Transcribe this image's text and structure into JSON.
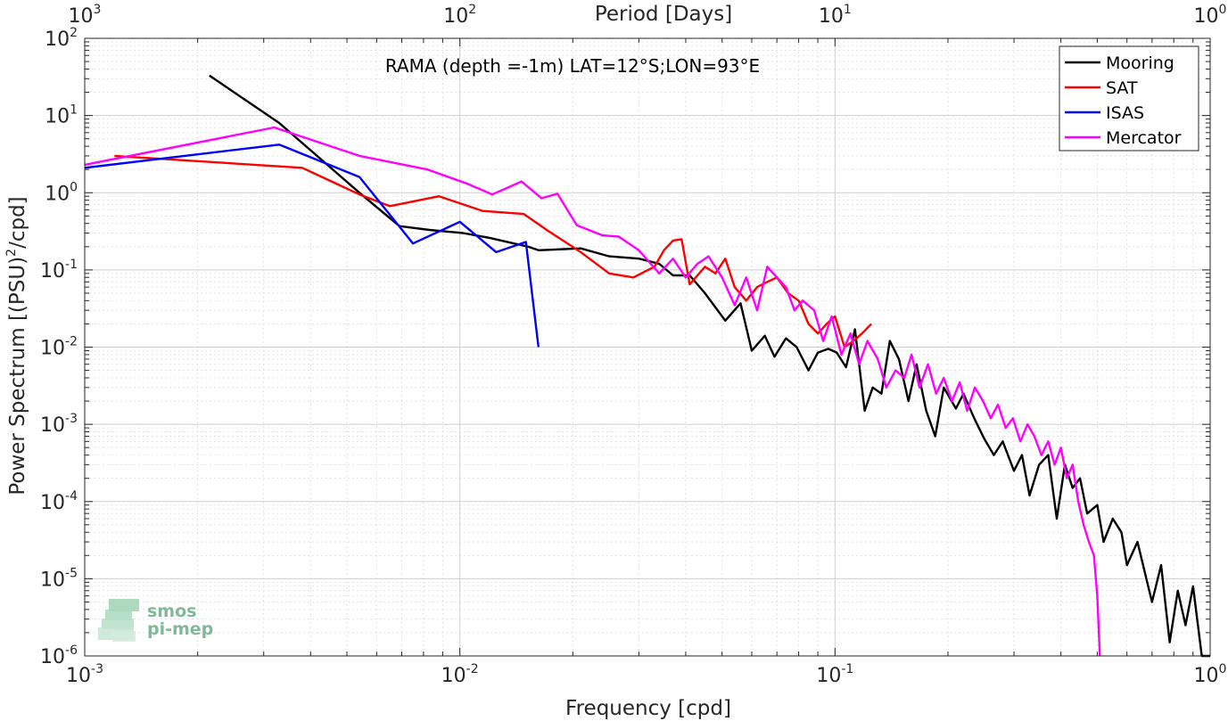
{
  "chart_data": {
    "type": "line",
    "title": "RAMA (depth =-1m) LAT=12°S;LON=93°E",
    "xlabel": "Frequency [cpd]",
    "ylabel": "Power Spectrum [(PSU)",
    "ylabel_sup": "2",
    "ylabel_suffix": "/cpd]",
    "top_xlabel": "Period [Days]",
    "xscale": "log",
    "yscale": "log",
    "xlim": [
      0.001,
      1
    ],
    "ylim": [
      1e-06,
      100
    ],
    "grid": true,
    "legend_position": "top-right",
    "x_ticks": [
      {
        "value": 0.001,
        "base": "10",
        "exp": "-3"
      },
      {
        "value": 0.01,
        "base": "10",
        "exp": "-2"
      },
      {
        "value": 0.1,
        "base": "10",
        "exp": "-1"
      },
      {
        "value": 1,
        "base": "10",
        "exp": "0"
      }
    ],
    "y_ticks": [
      {
        "value": 100,
        "base": "10",
        "exp": "2"
      },
      {
        "value": 10,
        "base": "10",
        "exp": "1"
      },
      {
        "value": 1,
        "base": "10",
        "exp": "0"
      },
      {
        "value": 0.1,
        "base": "10",
        "exp": "-1"
      },
      {
        "value": 0.01,
        "base": "10",
        "exp": "-2"
      },
      {
        "value": 0.001,
        "base": "10",
        "exp": "-3"
      },
      {
        "value": 0.0001,
        "base": "10",
        "exp": "-4"
      },
      {
        "value": 1e-05,
        "base": "10",
        "exp": "-5"
      },
      {
        "value": 1e-06,
        "base": "10",
        "exp": "-6"
      }
    ],
    "top_ticks": [
      {
        "period": 1000,
        "base": "10",
        "exp": "3"
      },
      {
        "period": 100,
        "base": "10",
        "exp": "2"
      },
      {
        "period": 10,
        "base": "10",
        "exp": "1"
      },
      {
        "period": 1,
        "base": "10",
        "exp": "0"
      }
    ],
    "series": [
      {
        "name": "Mooring",
        "color": "#000000",
        "points": [
          [
            0.00215,
            33
          ],
          [
            0.0033,
            8
          ],
          [
            0.0054,
            1
          ],
          [
            0.0069,
            0.37
          ],
          [
            0.0083,
            0.33
          ],
          [
            0.0102,
            0.3
          ],
          [
            0.012,
            0.26
          ],
          [
            0.0152,
            0.2
          ],
          [
            0.0162,
            0.18
          ],
          [
            0.021,
            0.19
          ],
          [
            0.025,
            0.15
          ],
          [
            0.03,
            0.14
          ],
          [
            0.034,
            0.12
          ],
          [
            0.037,
            0.085
          ],
          [
            0.041,
            0.085
          ],
          [
            0.045,
            0.05
          ],
          [
            0.051,
            0.022
          ],
          [
            0.056,
            0.037
          ],
          [
            0.06,
            0.009
          ],
          [
            0.065,
            0.014
          ],
          [
            0.069,
            0.0075
          ],
          [
            0.074,
            0.013
          ],
          [
            0.079,
            0.01
          ],
          [
            0.085,
            0.005
          ],
          [
            0.09,
            0.0085
          ],
          [
            0.096,
            0.0095
          ],
          [
            0.101,
            0.0085
          ],
          [
            0.107,
            0.0055
          ],
          [
            0.113,
            0.017
          ],
          [
            0.12,
            0.0015
          ],
          [
            0.126,
            0.003
          ],
          [
            0.133,
            0.0025
          ],
          [
            0.14,
            0.012
          ],
          [
            0.148,
            0.007
          ],
          [
            0.157,
            0.002
          ],
          [
            0.165,
            0.006
          ],
          [
            0.175,
            0.0015
          ],
          [
            0.185,
            0.0007
          ],
          [
            0.195,
            0.003
          ],
          [
            0.21,
            0.0016
          ],
          [
            0.22,
            0.0025
          ],
          [
            0.235,
            0.0012
          ],
          [
            0.25,
            0.00065
          ],
          [
            0.265,
            0.0004
          ],
          [
            0.28,
            0.0006
          ],
          [
            0.3,
            0.00025
          ],
          [
            0.315,
            0.0004
          ],
          [
            0.33,
            0.00012
          ],
          [
            0.35,
            0.0003
          ],
          [
            0.37,
            0.0004
          ],
          [
            0.39,
            6e-05
          ],
          [
            0.41,
            0.0003
          ],
          [
            0.43,
            0.00015
          ],
          [
            0.45,
            0.0002
          ],
          [
            0.47,
            7e-05
          ],
          [
            0.5,
            9e-05
          ],
          [
            0.52,
            3e-05
          ],
          [
            0.55,
            6e-05
          ],
          [
            0.58,
            4e-05
          ],
          [
            0.6,
            1.5e-05
          ],
          [
            0.64,
            3e-05
          ],
          [
            0.67,
            1.2e-05
          ],
          [
            0.7,
            5e-06
          ],
          [
            0.74,
            1.5e-05
          ],
          [
            0.78,
            1.5e-06
          ],
          [
            0.82,
            7e-06
          ],
          [
            0.86,
            2.5e-06
          ],
          [
            0.9,
            8e-06
          ],
          [
            0.95,
            1e-06
          ],
          [
            1.0,
            1e-06
          ]
        ]
      },
      {
        "name": "SAT",
        "color": "#ff0000",
        "points": [
          [
            0.0012,
            3
          ],
          [
            0.0038,
            2.1
          ],
          [
            0.0054,
            0.95
          ],
          [
            0.0065,
            0.67
          ],
          [
            0.0088,
            0.9
          ],
          [
            0.0115,
            0.58
          ],
          [
            0.0148,
            0.53
          ],
          [
            0.0172,
            0.32
          ],
          [
            0.021,
            0.17
          ],
          [
            0.025,
            0.09
          ],
          [
            0.029,
            0.08
          ],
          [
            0.033,
            0.11
          ],
          [
            0.035,
            0.18
          ],
          [
            0.037,
            0.24
          ],
          [
            0.039,
            0.25
          ],
          [
            0.041,
            0.065
          ],
          [
            0.045,
            0.11
          ],
          [
            0.048,
            0.09
          ],
          [
            0.051,
            0.14
          ],
          [
            0.054,
            0.06
          ],
          [
            0.058,
            0.04
          ],
          [
            0.062,
            0.06
          ],
          [
            0.066,
            0.07
          ],
          [
            0.07,
            0.08
          ],
          [
            0.075,
            0.05
          ],
          [
            0.08,
            0.04
          ],
          [
            0.085,
            0.02
          ],
          [
            0.09,
            0.015
          ],
          [
            0.095,
            0.02
          ],
          [
            0.1,
            0.025
          ],
          [
            0.106,
            0.01
          ],
          [
            0.112,
            0.012
          ],
          [
            0.118,
            0.015
          ],
          [
            0.125,
            0.02
          ]
        ]
      },
      {
        "name": "ISAS",
        "color": "#0000ff",
        "points": [
          [
            0.001,
            2.1
          ],
          [
            0.0033,
            4.2
          ],
          [
            0.0054,
            1.6
          ],
          [
            0.0075,
            0.22
          ],
          [
            0.01,
            0.42
          ],
          [
            0.0125,
            0.17
          ],
          [
            0.015,
            0.23
          ],
          [
            0.0162,
            0.01
          ]
        ]
      },
      {
        "name": "Mercator",
        "color": "#ff00ff",
        "points": [
          [
            0.001,
            2.3
          ],
          [
            0.0032,
            7
          ],
          [
            0.0054,
            3
          ],
          [
            0.0082,
            2
          ],
          [
            0.0105,
            1.3
          ],
          [
            0.0122,
            0.95
          ],
          [
            0.0146,
            1.4
          ],
          [
            0.0165,
            0.85
          ],
          [
            0.0182,
            0.97
          ],
          [
            0.0205,
            0.38
          ],
          [
            0.024,
            0.28
          ],
          [
            0.0265,
            0.27
          ],
          [
            0.03,
            0.18
          ],
          [
            0.034,
            0.09
          ],
          [
            0.037,
            0.14
          ],
          [
            0.04,
            0.08
          ],
          [
            0.043,
            0.12
          ],
          [
            0.046,
            0.15
          ],
          [
            0.05,
            0.08
          ],
          [
            0.054,
            0.035
          ],
          [
            0.058,
            0.08
          ],
          [
            0.062,
            0.03
          ],
          [
            0.066,
            0.11
          ],
          [
            0.07,
            0.08
          ],
          [
            0.074,
            0.06
          ],
          [
            0.078,
            0.03
          ],
          [
            0.082,
            0.04
          ],
          [
            0.088,
            0.03
          ],
          [
            0.093,
            0.012
          ],
          [
            0.098,
            0.025
          ],
          [
            0.104,
            0.008
          ],
          [
            0.11,
            0.015
          ],
          [
            0.116,
            0.006
          ],
          [
            0.122,
            0.012
          ],
          [
            0.13,
            0.007
          ],
          [
            0.137,
            0.003
          ],
          [
            0.145,
            0.005
          ],
          [
            0.153,
            0.004
          ],
          [
            0.16,
            0.008
          ],
          [
            0.168,
            0.003
          ],
          [
            0.177,
            0.006
          ],
          [
            0.186,
            0.0025
          ],
          [
            0.195,
            0.004
          ],
          [
            0.205,
            0.002
          ],
          [
            0.215,
            0.0035
          ],
          [
            0.225,
            0.0015
          ],
          [
            0.236,
            0.003
          ],
          [
            0.248,
            0.002
          ],
          [
            0.26,
            0.0012
          ],
          [
            0.272,
            0.0018
          ],
          [
            0.285,
            0.0009
          ],
          [
            0.298,
            0.0012
          ],
          [
            0.312,
            0.0006
          ],
          [
            0.326,
            0.001
          ],
          [
            0.34,
            0.0007
          ],
          [
            0.355,
            0.0004
          ],
          [
            0.37,
            0.0006
          ],
          [
            0.385,
            0.0003
          ],
          [
            0.4,
            0.0005
          ],
          [
            0.415,
            0.0002
          ],
          [
            0.43,
            0.0003
          ],
          [
            0.445,
            0.0001
          ],
          [
            0.46,
            5e-05
          ],
          [
            0.475,
            3e-05
          ],
          [
            0.49,
            2e-05
          ],
          [
            0.5,
            6e-06
          ],
          [
            0.505,
            2e-06
          ],
          [
            0.508,
            1e-06
          ]
        ]
      }
    ]
  },
  "logo": {
    "line1": "smos",
    "line2": "pi-mep"
  }
}
